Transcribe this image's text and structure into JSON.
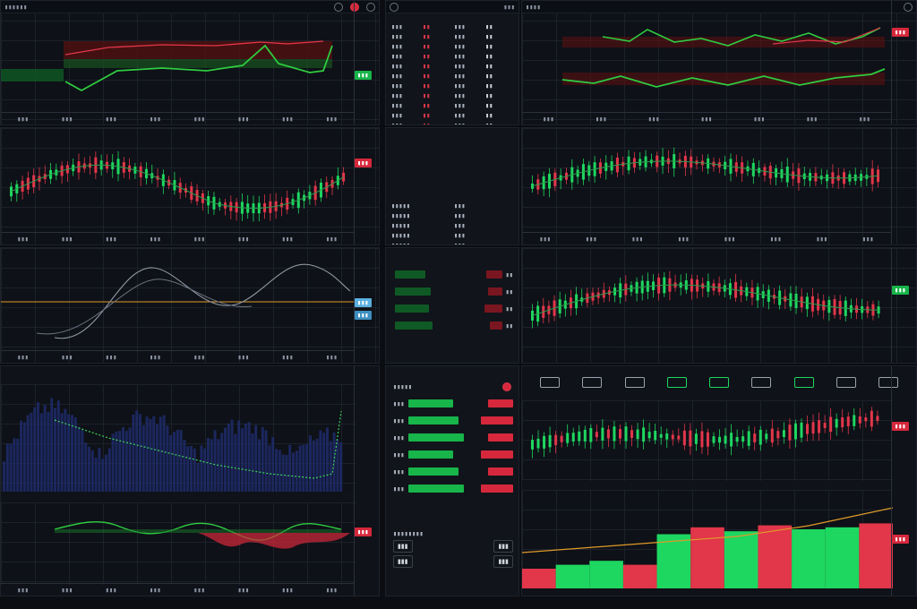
{
  "colors": {
    "up": "#1ed760",
    "down": "#e2364a",
    "line": "#2ecc40",
    "background": "#0e1117",
    "grid": "#1c212a",
    "accent_blue": "#2b4bd8",
    "orange": "#e09a2a"
  },
  "header": {
    "center_title": "",
    "icons": [
      "settings-icon",
      "record-icon",
      "search-icon"
    ]
  },
  "panels": {
    "top_left": {
      "type": "line-band",
      "tags": [
        "",
        ""
      ]
    },
    "top_center": {
      "type": "order-book"
    },
    "top_right": {
      "type": "dual-line"
    },
    "mid_left": {
      "type": "candlestick"
    },
    "mid_center": {
      "type": "order-list"
    },
    "mid_right": {
      "type": "candlestick"
    },
    "lower_left": {
      "type": "curve"
    },
    "lower_center": {
      "type": "bars-list"
    },
    "lower_right": {
      "type": "candlestick"
    },
    "bottom_left": {
      "type": "histogram-oscillator"
    },
    "bottom_center": {
      "type": "order-panel"
    },
    "bottom_right": {
      "type": "volume-bars"
    }
  },
  "nav_icons": [
    "mountain-icon",
    "truck-icon",
    "mountain-icon",
    "chart-icon",
    "green-box-icon",
    "briefcase-icon",
    "green-card-icon",
    "news-icon",
    "tent-icon"
  ],
  "bottom_right_bars": [
    {
      "value": 20,
      "dir": "down"
    },
    {
      "value": 24,
      "dir": "up"
    },
    {
      "value": 28,
      "dir": "up"
    },
    {
      "value": 24,
      "dir": "down"
    },
    {
      "value": 55,
      "dir": "up"
    },
    {
      "value": 62,
      "dir": "down"
    },
    {
      "value": 58,
      "dir": "up"
    },
    {
      "value": 64,
      "dir": "down"
    },
    {
      "value": 60,
      "dir": "up"
    },
    {
      "value": 62,
      "dir": "up"
    },
    {
      "value": 66,
      "dir": "down"
    }
  ]
}
